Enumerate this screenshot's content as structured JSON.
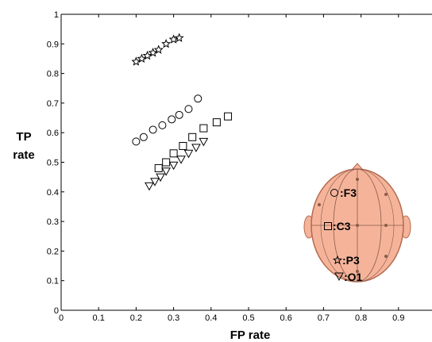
{
  "chart_data": {
    "type": "scatter",
    "xlabel": "FP rate",
    "ylabel_lines": [
      "TP",
      "rate"
    ],
    "xlim": [
      0,
      1
    ],
    "ylim": [
      0,
      1
    ],
    "xticks": [
      "0",
      "0.1",
      "0.2",
      "0.3",
      "0.4",
      "0.5",
      "0.6",
      "0.7",
      "0.8",
      "0.9"
    ],
    "yticks": [
      "0",
      "0.1",
      "0.2",
      "0.3",
      "0.4",
      "0.5",
      "0.6",
      "0.7",
      "0.8",
      "0.9",
      "1"
    ],
    "grid": false,
    "legend": {
      "placement": "bottom-right, drawn on a head diagram"
    },
    "series": [
      {
        "name": ":P3",
        "marker": "star",
        "x": [
          0.2,
          0.215,
          0.23,
          0.245,
          0.26,
          0.28,
          0.3,
          0.315
        ],
        "y": [
          0.84,
          0.85,
          0.86,
          0.87,
          0.88,
          0.9,
          0.915,
          0.92
        ]
      },
      {
        "name": ":F3",
        "marker": "circle",
        "x": [
          0.2,
          0.22,
          0.245,
          0.27,
          0.295,
          0.315,
          0.34,
          0.365
        ],
        "y": [
          0.57,
          0.585,
          0.61,
          0.625,
          0.645,
          0.66,
          0.68,
          0.715
        ]
      },
      {
        "name": ":C3",
        "marker": "square",
        "x": [
          0.26,
          0.28,
          0.3,
          0.325,
          0.35,
          0.38,
          0.415,
          0.445
        ],
        "y": [
          0.48,
          0.5,
          0.53,
          0.555,
          0.585,
          0.615,
          0.635,
          0.655
        ]
      },
      {
        "name": ":O1",
        "marker": "triangle-down",
        "x": [
          0.235,
          0.25,
          0.265,
          0.28,
          0.3,
          0.32,
          0.34,
          0.36,
          0.38
        ],
        "y": [
          0.42,
          0.435,
          0.45,
          0.47,
          0.49,
          0.51,
          0.53,
          0.55,
          0.57
        ]
      }
    ]
  },
  "colors": {
    "head_fill": "#f5b49a",
    "head_stroke": "#b56a4f",
    "head_lines": "#8a5a4a"
  }
}
